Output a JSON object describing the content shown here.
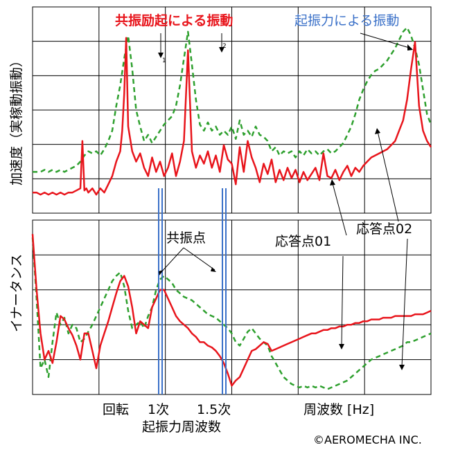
{
  "chart_data": [
    {
      "type": "line",
      "id": "acceleration",
      "ylabel": "加速度（実稼動振動）",
      "series": [
        {
          "name": "応答点01",
          "color": "#e8141b",
          "style": "solid",
          "x": [
            0,
            2,
            4,
            6,
            8,
            10,
            12,
            14,
            16,
            18,
            20,
            22,
            24,
            25,
            26,
            27,
            28,
            30,
            32,
            34,
            36,
            38,
            40,
            42,
            44,
            45,
            46,
            47,
            48,
            50,
            52,
            54,
            56,
            58,
            60,
            62,
            64,
            66,
            68,
            70,
            72,
            74,
            76,
            78,
            80,
            82,
            84,
            86,
            88,
            90,
            92,
            94,
            96,
            98,
            100,
            102,
            104,
            106,
            108,
            110,
            112,
            114,
            116,
            118,
            120,
            122,
            124,
            126,
            128,
            130,
            132,
            134,
            136,
            138,
            140,
            142,
            144,
            146,
            148,
            150,
            152,
            154,
            156,
            158,
            160,
            162,
            164,
            166,
            168,
            170,
            172,
            174,
            176,
            178,
            180,
            182,
            184,
            186,
            188,
            190,
            192,
            194,
            196,
            198,
            200
          ],
          "y": [
            0.1,
            0.1,
            0.09,
            0.1,
            0.09,
            0.1,
            0.09,
            0.1,
            0.09,
            0.1,
            0.1,
            0.11,
            0.12,
            0.35,
            0.11,
            0.12,
            0.1,
            0.12,
            0.09,
            0.12,
            0.1,
            0.14,
            0.18,
            0.25,
            0.3,
            0.4,
            0.58,
            0.85,
            0.42,
            0.3,
            0.25,
            0.29,
            0.22,
            0.18,
            0.27,
            0.2,
            0.25,
            0.18,
            0.22,
            0.29,
            0.18,
            0.25,
            0.35,
            0.79,
            0.3,
            0.22,
            0.28,
            0.24,
            0.3,
            0.22,
            0.28,
            0.2,
            0.33,
            0.26,
            0.24,
            0.14,
            0.32,
            0.2,
            0.35,
            0.27,
            0.22,
            0.15,
            0.24,
            0.19,
            0.26,
            0.15,
            0.21,
            0.16,
            0.22,
            0.17,
            0.21,
            0.15,
            0.2,
            0.16,
            0.19,
            0.22,
            0.16,
            0.29,
            0.18,
            0.17,
            0.21,
            0.16,
            0.2,
            0.23,
            0.18,
            0.22,
            0.2,
            0.23,
            0.25,
            0.27,
            0.28,
            0.29,
            0.3,
            0.31,
            0.33,
            0.35,
            0.4,
            0.45,
            0.55,
            0.7,
            0.83,
            0.52,
            0.4,
            0.35,
            0.32
          ]
        },
        {
          "name": "応答点02",
          "color": "#2ea02e",
          "style": "dashed",
          "x": [
            0,
            2,
            4,
            6,
            8,
            10,
            12,
            14,
            16,
            18,
            20,
            22,
            24,
            26,
            28,
            30,
            32,
            34,
            36,
            38,
            40,
            42,
            44,
            46,
            48,
            50,
            52,
            54,
            56,
            58,
            60,
            62,
            64,
            66,
            68,
            70,
            72,
            74,
            76,
            78,
            80,
            82,
            84,
            86,
            88,
            90,
            92,
            94,
            96,
            98,
            100,
            102,
            104,
            106,
            108,
            110,
            112,
            114,
            116,
            118,
            120,
            122,
            124,
            126,
            128,
            130,
            132,
            134,
            136,
            138,
            140,
            142,
            144,
            146,
            148,
            150,
            152,
            154,
            156,
            158,
            160,
            162,
            164,
            166,
            168,
            170,
            172,
            174,
            176,
            178,
            180,
            182,
            184,
            186,
            188,
            190,
            192,
            194,
            196,
            198,
            200
          ],
          "y": [
            0.2,
            0.2,
            0.2,
            0.21,
            0.2,
            0.21,
            0.2,
            0.21,
            0.2,
            0.21,
            0.22,
            0.23,
            0.25,
            0.28,
            0.3,
            0.29,
            0.3,
            0.28,
            0.31,
            0.35,
            0.4,
            0.52,
            0.62,
            0.75,
            0.86,
            0.7,
            0.5,
            0.42,
            0.35,
            0.38,
            0.34,
            0.37,
            0.4,
            0.43,
            0.45,
            0.47,
            0.52,
            0.62,
            0.75,
            0.88,
            0.72,
            0.55,
            0.43,
            0.4,
            0.44,
            0.4,
            0.42,
            0.38,
            0.4,
            0.38,
            0.42,
            0.36,
            0.45,
            0.38,
            0.4,
            0.37,
            0.42,
            0.38,
            0.37,
            0.35,
            0.3,
            0.32,
            0.28,
            0.3,
            0.29,
            0.3,
            0.27,
            0.3,
            0.28,
            0.31,
            0.29,
            0.3,
            0.28,
            0.3,
            0.31,
            0.29,
            0.3,
            0.32,
            0.34,
            0.38,
            0.42,
            0.48,
            0.55,
            0.6,
            0.64,
            0.67,
            0.69,
            0.7,
            0.72,
            0.74,
            0.77,
            0.8,
            0.84,
            0.88,
            0.9,
            0.86,
            0.8,
            0.72,
            0.6,
            0.48,
            0.43
          ]
        }
      ]
    },
    {
      "type": "line",
      "id": "inertance",
      "ylabel": "イナータンス",
      "series": [
        {
          "name": "応答点01",
          "color": "#e8141b",
          "style": "solid",
          "x": [
            0,
            2,
            4,
            6,
            8,
            10,
            12,
            14,
            16,
            18,
            20,
            22,
            24,
            26,
            28,
            30,
            32,
            34,
            36,
            38,
            40,
            42,
            44,
            46,
            48,
            50,
            52,
            54,
            56,
            58,
            60,
            62,
            64,
            66,
            68,
            70,
            72,
            74,
            76,
            78,
            80,
            82,
            84,
            86,
            88,
            90,
            92,
            94,
            96,
            98,
            100,
            102,
            104,
            106,
            108,
            110,
            112,
            114,
            116,
            118,
            120,
            122,
            124,
            126,
            128,
            130,
            132,
            134,
            136,
            138,
            140,
            142,
            144,
            146,
            148,
            150,
            152,
            154,
            156,
            158,
            160,
            162,
            164,
            166,
            168,
            170,
            172,
            174,
            176,
            178,
            180,
            182,
            184,
            186,
            188,
            190,
            192,
            194,
            196,
            198,
            200
          ],
          "y": [
            0.92,
            0.6,
            0.35,
            0.2,
            0.25,
            0.18,
            0.3,
            0.45,
            0.43,
            0.38,
            0.34,
            0.28,
            0.2,
            0.35,
            0.35,
            0.25,
            0.15,
            0.28,
            0.35,
            0.42,
            0.5,
            0.58,
            0.65,
            0.68,
            0.62,
            0.5,
            0.35,
            0.42,
            0.4,
            0.38,
            0.5,
            0.55,
            0.6,
            0.6,
            0.55,
            0.5,
            0.45,
            0.42,
            0.4,
            0.38,
            0.35,
            0.33,
            0.3,
            0.3,
            0.28,
            0.27,
            0.25,
            0.22,
            0.18,
            0.12,
            0.05,
            0.08,
            0.1,
            0.15,
            0.2,
            0.25,
            0.26,
            0.28,
            0.3,
            0.29,
            0.25,
            0.26,
            0.27,
            0.28,
            0.29,
            0.3,
            0.31,
            0.32,
            0.33,
            0.34,
            0.35,
            0.35,
            0.36,
            0.37,
            0.37,
            0.38,
            0.38,
            0.39,
            0.39,
            0.4,
            0.4,
            0.41,
            0.41,
            0.42,
            0.42,
            0.43,
            0.43,
            0.43,
            0.44,
            0.44,
            0.44,
            0.45,
            0.45,
            0.45,
            0.45,
            0.45,
            0.46,
            0.46,
            0.46,
            0.47,
            0.48
          ]
        },
        {
          "name": "応答点02",
          "color": "#2ea02e",
          "style": "dashed",
          "x": [
            0,
            2,
            4,
            6,
            8,
            10,
            12,
            14,
            16,
            18,
            20,
            22,
            24,
            26,
            28,
            30,
            32,
            34,
            36,
            38,
            40,
            42,
            44,
            46,
            48,
            50,
            52,
            54,
            56,
            58,
            60,
            62,
            64,
            66,
            68,
            70,
            72,
            74,
            76,
            78,
            80,
            82,
            84,
            86,
            88,
            90,
            92,
            94,
            96,
            98,
            100,
            102,
            104,
            106,
            108,
            110,
            112,
            114,
            116,
            118,
            120,
            122,
            124,
            126,
            128,
            130,
            132,
            134,
            136,
            138,
            140,
            142,
            144,
            146,
            148,
            150,
            152,
            154,
            156,
            158,
            160,
            162,
            164,
            166,
            168,
            170,
            172,
            174,
            176,
            178,
            180,
            182,
            184,
            186,
            188,
            190,
            192,
            194,
            196,
            198,
            200
          ],
          "y": [
            0.9,
            0.55,
            0.15,
            0.2,
            0.1,
            0.3,
            0.47,
            0.4,
            0.44,
            0.35,
            0.4,
            0.38,
            0.3,
            0.32,
            0.36,
            0.4,
            0.45,
            0.5,
            0.55,
            0.6,
            0.65,
            0.68,
            0.7,
            0.62,
            0.48,
            0.38,
            0.4,
            0.42,
            0.38,
            0.45,
            0.5,
            0.6,
            0.66,
            0.68,
            0.66,
            0.64,
            0.6,
            0.58,
            0.56,
            0.55,
            0.54,
            0.52,
            0.5,
            0.48,
            0.46,
            0.45,
            0.44,
            0.42,
            0.4,
            0.38,
            0.35,
            0.3,
            0.28,
            0.32,
            0.36,
            0.38,
            0.35,
            0.32,
            0.3,
            0.28,
            0.22,
            0.18,
            0.14,
            0.1,
            0.08,
            0.06,
            0.05,
            0.04,
            0.05,
            0.04,
            0.05,
            0.04,
            0.05,
            0.04,
            0.03,
            0.04,
            0.05,
            0.06,
            0.07,
            0.08,
            0.1,
            0.12,
            0.14,
            0.16,
            0.18,
            0.2,
            0.21,
            0.22,
            0.23,
            0.24,
            0.25,
            0.26,
            0.27,
            0.28,
            0.3,
            0.3,
            0.31,
            0.32,
            0.33,
            0.34,
            0.35
          ]
        }
      ]
    }
  ],
  "labels": {
    "resonance_excitation": "共振励起による振動",
    "excitation_force": "起振力による振動",
    "response01": "応答点01",
    "response02": "応答点02",
    "resonance_point": "共振点",
    "rotation": "回転",
    "first_order": "1次",
    "one_point_five_order": "1.5次",
    "excitation_freq": "起振力周波数",
    "frequency_hz": "周波数 [Hz]",
    "copyright": "©AEROMECHA INC.",
    "peak1": "1",
    "peak2": "2"
  },
  "colors": {
    "red": "#e8141b",
    "green": "#2ea02e",
    "blue": "#3a70c8",
    "grid": "#000000"
  },
  "grid": true
}
